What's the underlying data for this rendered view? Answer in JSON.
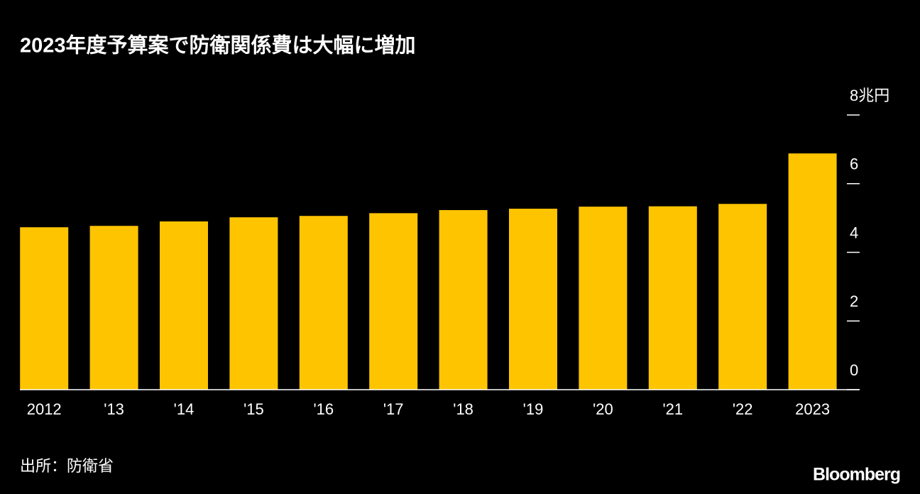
{
  "chart_data": {
    "type": "bar",
    "title": "2023年度予算案で防衛関係費は大幅に増加",
    "categories": [
      "2012",
      "'13",
      "'14",
      "'15",
      "'16",
      "'17",
      "'18",
      "'19",
      "'20",
      "'21",
      "'22",
      "2023"
    ],
    "values": [
      4.73,
      4.77,
      4.9,
      5.02,
      5.06,
      5.14,
      5.23,
      5.27,
      5.33,
      5.34,
      5.41,
      6.88
    ],
    "color": "#ffc400",
    "ylim": [
      0,
      8
    ],
    "yticks": [
      0,
      2,
      4,
      6,
      {
        "value": 8,
        "label": "8兆円"
      }
    ],
    "source": "出所：防衛省",
    "brand": "Bloomberg"
  }
}
